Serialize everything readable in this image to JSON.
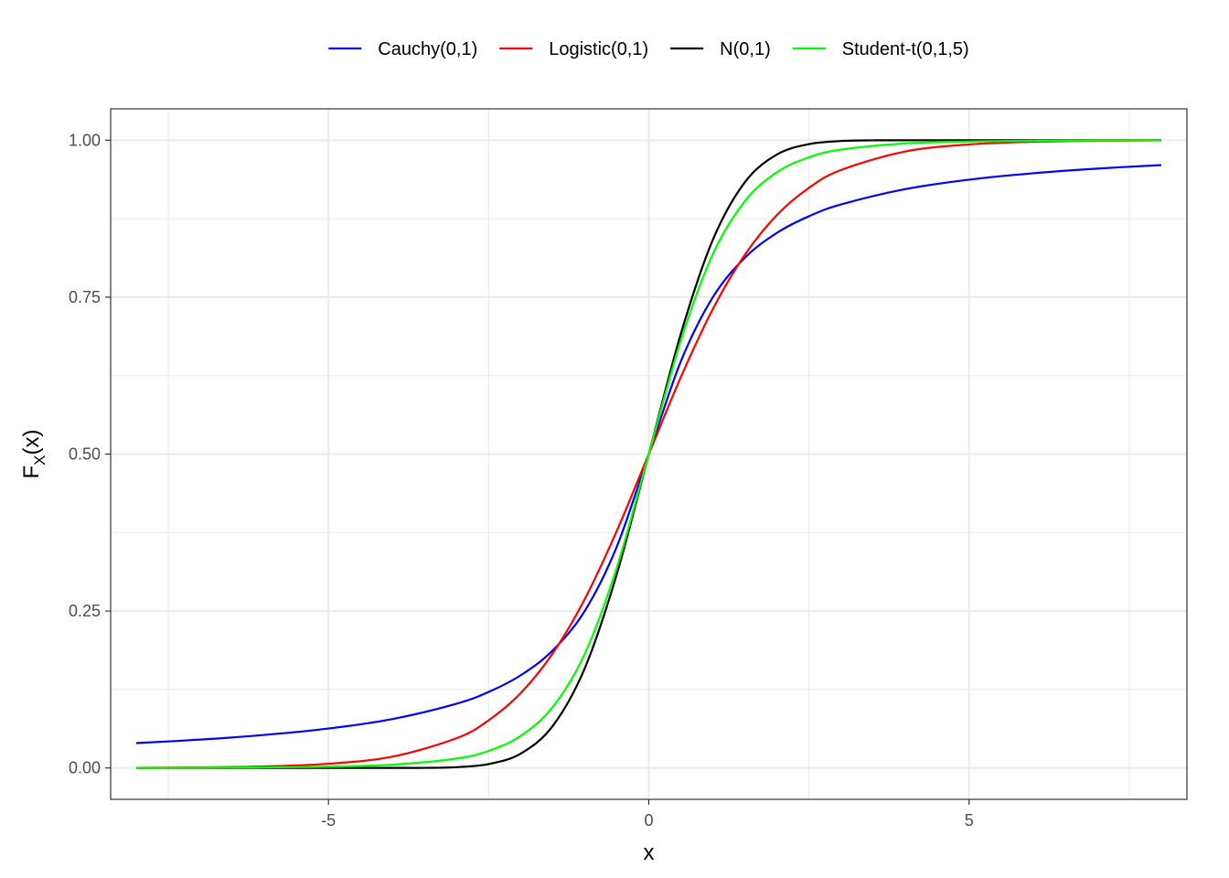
{
  "chart_data": {
    "type": "line",
    "title": "",
    "xlabel": "x",
    "ylabel": {
      "main": "F",
      "sub": "X",
      "tail": "(x)"
    },
    "xlim": [
      -8.4,
      8.4
    ],
    "ylim": [
      -0.05,
      1.05
    ],
    "x_ticks": [
      -5,
      0,
      5
    ],
    "x_tick_labels": [
      "-5",
      "0",
      "5"
    ],
    "x_minor_ticks": [
      -7.5,
      -2.5,
      2.5,
      7.5
    ],
    "y_ticks": [
      0,
      0.25,
      0.5,
      0.75,
      1
    ],
    "y_tick_labels": [
      "0.00",
      "0.25",
      "0.50",
      "0.75",
      "1.00"
    ],
    "y_minor_ticks": [
      0.125,
      0.375,
      0.625,
      0.875
    ],
    "grid": true,
    "legend_position": "top",
    "series": [
      {
        "name": "Cauchy(0,1)",
        "color": "#0000ff",
        "x": [
          -8,
          -7,
          -6,
          -5,
          -4,
          -3,
          -2.5,
          -2,
          -1.5,
          -1,
          -0.5,
          0,
          0.5,
          1,
          1.5,
          2,
          2.5,
          3,
          4,
          5,
          6,
          7,
          8
        ],
        "y": [
          0.0396,
          0.0452,
          0.0526,
          0.0628,
          0.078,
          0.1024,
          0.1211,
          0.1476,
          0.1872,
          0.25,
          0.3524,
          0.5,
          0.6476,
          0.75,
          0.8128,
          0.8524,
          0.8789,
          0.8976,
          0.922,
          0.9372,
          0.9474,
          0.9548,
          0.9604
        ]
      },
      {
        "name": "Logistic(0,1)",
        "color": "#ff0000",
        "x": [
          -8,
          -7,
          -6,
          -5,
          -4,
          -3,
          -2.5,
          -2,
          -1.5,
          -1,
          -0.5,
          0,
          0.5,
          1,
          1.5,
          2,
          2.5,
          3,
          4,
          5,
          6,
          7,
          8
        ],
        "y": [
          0.0003,
          0.0009,
          0.0025,
          0.0067,
          0.018,
          0.0474,
          0.0759,
          0.1192,
          0.1824,
          0.2689,
          0.3775,
          0.5,
          0.6225,
          0.7311,
          0.8176,
          0.8808,
          0.9241,
          0.9526,
          0.982,
          0.9933,
          0.9975,
          0.9991,
          0.9997
        ]
      },
      {
        "name": "N(0,1)",
        "color": "#000000",
        "x": [
          -8,
          -4,
          -3.5,
          -3,
          -2.5,
          -2,
          -1.5,
          -1,
          -0.5,
          0,
          0.5,
          1,
          1.5,
          2,
          2.5,
          3,
          3.5,
          4,
          8
        ],
        "y": [
          0,
          3e-05,
          0.0002,
          0.0013,
          0.0062,
          0.0228,
          0.0668,
          0.1587,
          0.3085,
          0.5,
          0.6915,
          0.8413,
          0.9332,
          0.9772,
          0.9938,
          0.9987,
          0.9998,
          0.99997,
          1
        ]
      },
      {
        "name": "Student-t(0,1,5)",
        "color": "#00ff00",
        "x": [
          -8,
          -7,
          -6,
          -5,
          -4,
          -3,
          -2.5,
          -2,
          -1.5,
          -1,
          -0.5,
          0,
          0.5,
          1,
          1.5,
          2,
          2.5,
          3,
          4,
          5,
          6,
          7,
          8
        ],
        "y": [
          0.0002,
          0.0005,
          0.0009,
          0.0021,
          0.0052,
          0.015,
          0.0272,
          0.051,
          0.097,
          0.1816,
          0.3191,
          0.5,
          0.6809,
          0.8184,
          0.903,
          0.949,
          0.9728,
          0.985,
          0.9948,
          0.9979,
          0.9991,
          0.9995,
          0.9998
        ]
      }
    ]
  }
}
